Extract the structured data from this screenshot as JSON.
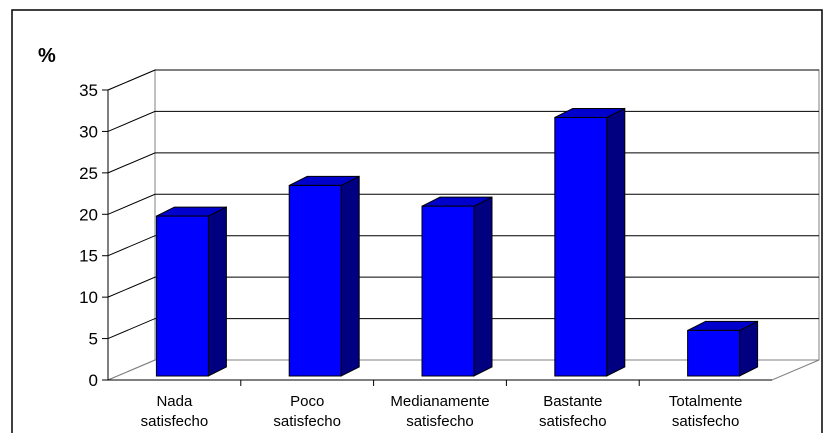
{
  "chart_data": {
    "type": "bar",
    "style": "3d-column",
    "title": "",
    "xlabel": "",
    "ylabel": "%",
    "categories": [
      [
        "Nada",
        "satisfecho"
      ],
      [
        "Poco",
        "satisfecho"
      ],
      [
        "Medianamente",
        "satisfecho"
      ],
      [
        "Bastante",
        "satisfecho"
      ],
      [
        "Totalmente",
        "satisfecho"
      ]
    ],
    "values": [
      19.3,
      23.0,
      20.5,
      31.2,
      5.5
    ],
    "ylim": [
      0,
      35
    ],
    "yticks": [
      "0",
      "5",
      "10",
      "15",
      "20",
      "25",
      "30",
      "35"
    ],
    "grid": true,
    "legend": "none",
    "colors": {
      "bar_front": "#0000ff",
      "bar_side": "#000080",
      "bar_top": "#0000cc",
      "bar_edge": "#000000",
      "grid": "#000000",
      "background": "#ffffff"
    }
  }
}
